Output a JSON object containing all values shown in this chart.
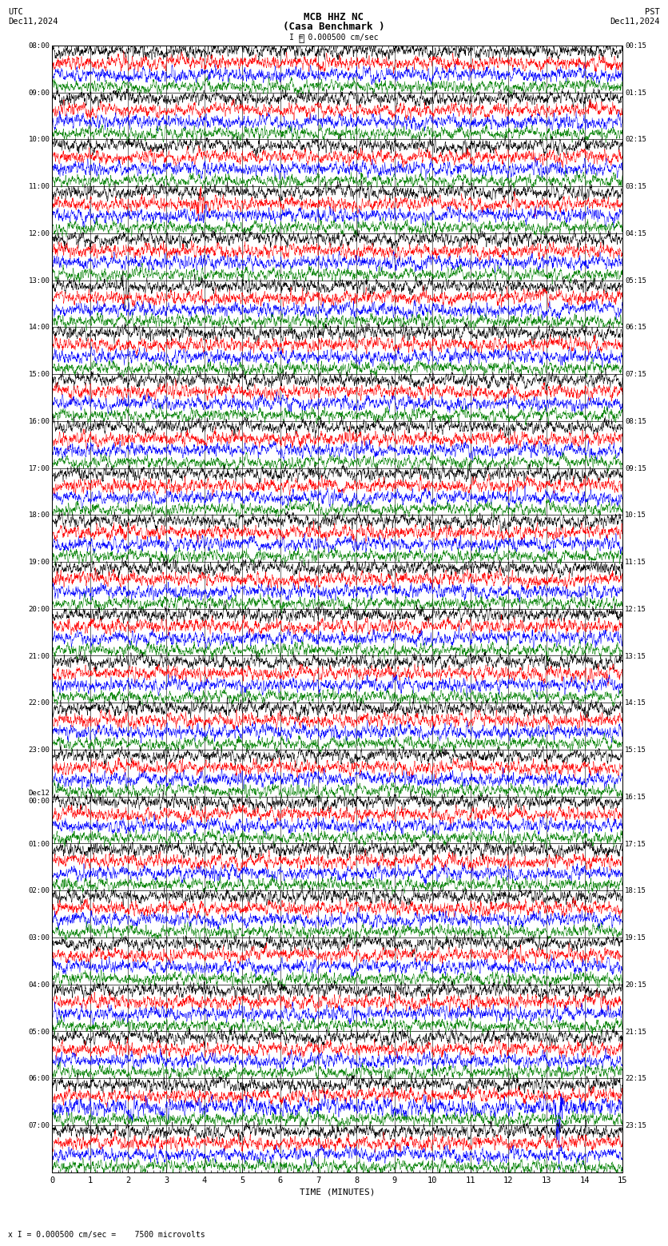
{
  "title_line1": "MCB HHZ NC",
  "title_line2": "(Casa Benchmark )",
  "scale_text": "I = 0.000500 cm/sec",
  "bottom_scale_text": "x I = 0.000500 cm/sec =    7500 microvolts",
  "utc_label": "UTC\nDec11,2024",
  "pst_label": "PST\nDec11,2024",
  "xlabel": "TIME (MINUTES)",
  "left_times_utc": [
    "08:00",
    "09:00",
    "10:00",
    "11:00",
    "12:00",
    "13:00",
    "14:00",
    "15:00",
    "16:00",
    "17:00",
    "18:00",
    "19:00",
    "20:00",
    "21:00",
    "22:00",
    "23:00",
    "Dec12\n00:00",
    "01:00",
    "02:00",
    "03:00",
    "04:00",
    "05:00",
    "06:00",
    "07:00"
  ],
  "right_times_pst": [
    "00:15",
    "01:15",
    "02:15",
    "03:15",
    "04:15",
    "05:15",
    "06:15",
    "07:15",
    "08:15",
    "09:15",
    "10:15",
    "11:15",
    "12:15",
    "13:15",
    "14:15",
    "15:15",
    "16:15",
    "17:15",
    "18:15",
    "19:15",
    "20:15",
    "21:15",
    "22:15",
    "23:15"
  ],
  "n_rows": 24,
  "traces_per_row": 4,
  "colors": [
    "black",
    "red",
    "blue",
    "green"
  ],
  "trace_duration_minutes": 15,
  "background_color": "white",
  "fig_width": 8.5,
  "fig_height": 15.84,
  "dpi": 100
}
